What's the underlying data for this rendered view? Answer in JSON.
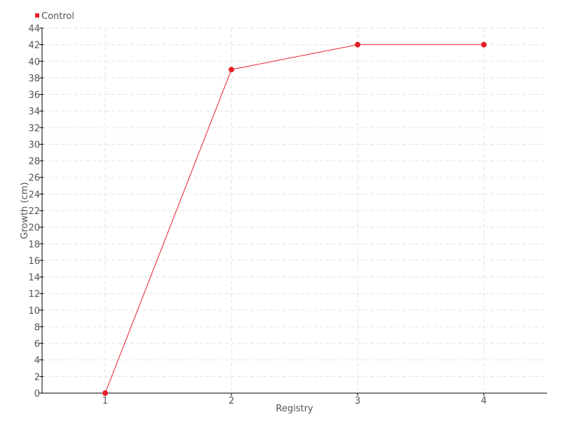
{
  "chart_data": {
    "type": "line",
    "title": "",
    "xlabel": "Registry",
    "ylabel": "Growth (cm)",
    "x": [
      1,
      2,
      3,
      4
    ],
    "xlim": [
      0.5,
      4.5
    ],
    "ylim": [
      0,
      44
    ],
    "yticks": [
      0,
      2,
      4,
      6,
      8,
      10,
      12,
      14,
      16,
      18,
      20,
      22,
      24,
      26,
      28,
      30,
      32,
      34,
      36,
      38,
      40,
      42,
      44
    ],
    "xticks": [
      1,
      2,
      3,
      4
    ],
    "grid": true,
    "legend_position": "top-left",
    "series": [
      {
        "name": "Control",
        "values": [
          0,
          39,
          42,
          42
        ],
        "color": "#e8202a"
      }
    ]
  }
}
